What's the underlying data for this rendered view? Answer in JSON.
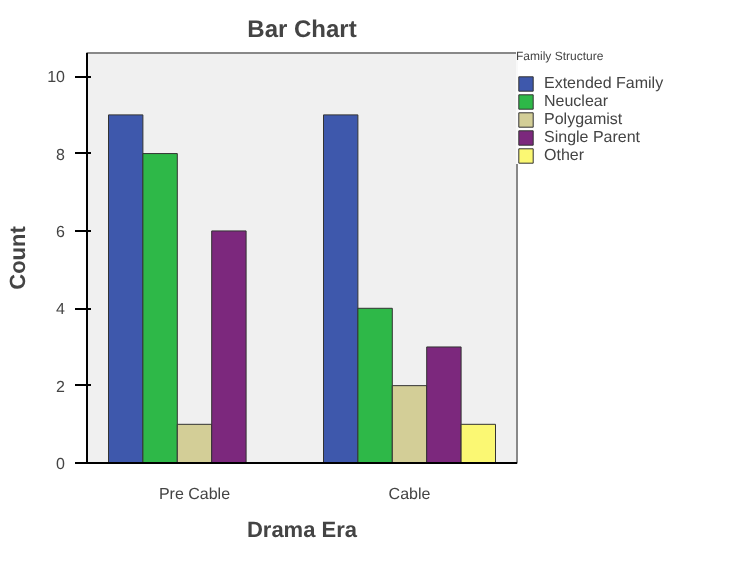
{
  "chart_data": {
    "type": "bar",
    "title": "Bar Chart",
    "xlabel": "Drama Era",
    "ylabel": "Count",
    "legend_title": "Family Structure",
    "categories": [
      "Pre Cable",
      "Cable"
    ],
    "series": [
      {
        "name": "Extended Family",
        "color": "#3e58ac",
        "values": [
          9,
          9
        ]
      },
      {
        "name": "Neuclear",
        "color": "#2eb848",
        "values": [
          8,
          4
        ]
      },
      {
        "name": "Polygamist",
        "color": "#d3ce97",
        "values": [
          1,
          2
        ]
      },
      {
        "name": "Single Parent",
        "color": "#7c287d",
        "values": [
          6,
          3
        ]
      },
      {
        "name": "Other",
        "color": "#fbf873",
        "values": [
          null,
          1
        ]
      }
    ],
    "ylim": [
      0,
      10.6
    ],
    "yticks": [
      0,
      2,
      4,
      6,
      8,
      10
    ],
    "grid": false,
    "legend": "right"
  }
}
